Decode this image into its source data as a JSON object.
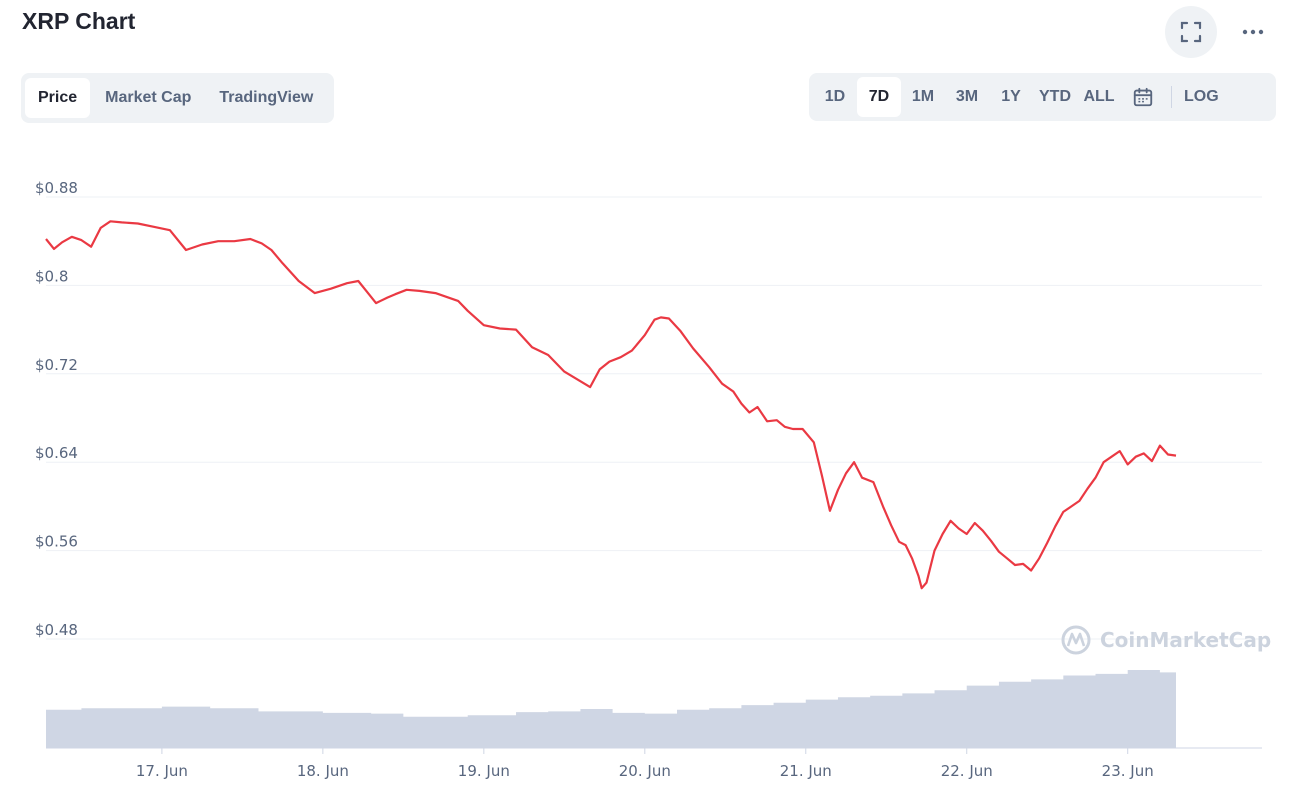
{
  "header": {
    "title": "XRP Chart"
  },
  "tabs": [
    {
      "label": "Price",
      "active": true
    },
    {
      "label": "Market Cap",
      "active": false
    },
    {
      "label": "TradingView",
      "active": false
    }
  ],
  "ranges": [
    {
      "label": "1D",
      "active": false
    },
    {
      "label": "7D",
      "active": true
    },
    {
      "label": "1M",
      "active": false
    },
    {
      "label": "3M",
      "active": false
    },
    {
      "label": "1Y",
      "active": false
    },
    {
      "label": "YTD",
      "active": false
    },
    {
      "label": "ALL",
      "active": false
    }
  ],
  "log_label": "LOG",
  "icons": {
    "fullscreen": "fullscreen-icon",
    "more": "more-icon",
    "calendar": "calendar-icon",
    "watermark": "coinmarketcap-logo"
  },
  "watermark": "CoinMarketCap",
  "colors": {
    "price_line": "#ea3943",
    "volume": "#cfd6e4",
    "grid": "#eef1f5",
    "axis_text": "#58667e"
  },
  "chart_data": {
    "type": "line",
    "x_unit": "days",
    "x_tick_labels": [
      "17. Jun",
      "18. Jun",
      "19. Jun",
      "20. Jun",
      "21. Jun",
      "22. Jun",
      "23. Jun"
    ],
    "x_tick_values": [
      17,
      18,
      19,
      20,
      21,
      22,
      23
    ],
    "xlim": [
      16.28,
      23.3
    ],
    "y_tick_labels": [
      "$0.88",
      "$0.8",
      "$0.72",
      "$0.64",
      "$0.56",
      "$0.48"
    ],
    "y_tick_values": [
      0.88,
      0.8,
      0.72,
      0.64,
      0.56,
      0.48
    ],
    "ylim": [
      0.48,
      0.88
    ],
    "grid": true,
    "series": [
      {
        "x": [
          16.28,
          16.33,
          16.38,
          16.44,
          16.5,
          16.56,
          16.62,
          16.68,
          16.75,
          16.85,
          16.95,
          17.05,
          17.15,
          17.25,
          17.35,
          17.45,
          17.55,
          17.62,
          17.68,
          17.75,
          17.85,
          17.95,
          18.05,
          18.15,
          18.22,
          18.27,
          18.33,
          18.4,
          18.45,
          18.52,
          18.6,
          18.7,
          18.78,
          18.84,
          18.9,
          19.0,
          19.1,
          19.2,
          19.3,
          19.4,
          19.5,
          19.58,
          19.66,
          19.72,
          19.78,
          19.85,
          19.92,
          20.0,
          20.06,
          20.1,
          20.15,
          20.22,
          20.3,
          20.4,
          20.48,
          20.55,
          20.6,
          20.65,
          20.7,
          20.76,
          20.82,
          20.87,
          20.92,
          20.98,
          21.05,
          21.1,
          21.15,
          21.2,
          21.25,
          21.3,
          21.35,
          21.42,
          21.48,
          21.53,
          21.58,
          21.62,
          21.66,
          21.7,
          21.72,
          21.75,
          21.8,
          21.85,
          21.9,
          21.95,
          22.0,
          22.05,
          22.1,
          22.15,
          22.2,
          22.25,
          22.3,
          22.35,
          22.4,
          22.45,
          22.5,
          22.55,
          22.6,
          22.65,
          22.7,
          22.75,
          22.8,
          22.85,
          22.9,
          22.95,
          23.0,
          23.05,
          23.1,
          23.15,
          23.2,
          23.25,
          23.3
        ],
        "y": [
          0.842,
          0.833,
          0.839,
          0.844,
          0.841,
          0.835,
          0.852,
          0.858,
          0.857,
          0.856,
          0.853,
          0.85,
          0.832,
          0.837,
          0.84,
          0.84,
          0.842,
          0.838,
          0.832,
          0.82,
          0.804,
          0.793,
          0.797,
          0.802,
          0.804,
          0.795,
          0.784,
          0.789,
          0.792,
          0.796,
          0.795,
          0.793,
          0.789,
          0.786,
          0.777,
          0.764,
          0.761,
          0.76,
          0.744,
          0.737,
          0.722,
          0.715,
          0.708,
          0.724,
          0.731,
          0.735,
          0.741,
          0.755,
          0.769,
          0.771,
          0.77,
          0.759,
          0.743,
          0.726,
          0.711,
          0.704,
          0.693,
          0.685,
          0.69,
          0.677,
          0.678,
          0.672,
          0.67,
          0.67,
          0.658,
          0.628,
          0.596,
          0.615,
          0.63,
          0.64,
          0.626,
          0.622,
          0.6,
          0.583,
          0.568,
          0.565,
          0.553,
          0.537,
          0.526,
          0.531,
          0.56,
          0.575,
          0.587,
          0.58,
          0.575,
          0.585,
          0.578,
          0.569,
          0.559,
          0.553,
          0.547,
          0.548,
          0.542,
          0.553,
          0.567,
          0.582,
          0.595,
          0.6,
          0.605,
          0.616,
          0.626,
          0.64,
          0.645,
          0.65,
          0.638,
          0.645,
          0.648,
          0.641,
          0.655,
          0.647,
          0.646
        ]
      }
    ],
    "volume": {
      "type": "area",
      "x": [
        16.28,
        16.5,
        17.0,
        17.3,
        17.6,
        18.0,
        18.3,
        18.5,
        18.9,
        19.2,
        19.4,
        19.6,
        19.8,
        20.0,
        20.2,
        20.4,
        20.6,
        20.8,
        21.0,
        21.2,
        21.4,
        21.6,
        21.8,
        22.0,
        22.2,
        22.4,
        22.6,
        22.8,
        23.0,
        23.2,
        23.3
      ],
      "ylim": [
        0,
        100
      ],
      "values": [
        49,
        51,
        53,
        51,
        47,
        45,
        44,
        40,
        42,
        46,
        47,
        50,
        45,
        44,
        49,
        51,
        55,
        58,
        62,
        65,
        67,
        70,
        74,
        80,
        85,
        88,
        93,
        95,
        100,
        97,
        95
      ]
    }
  }
}
